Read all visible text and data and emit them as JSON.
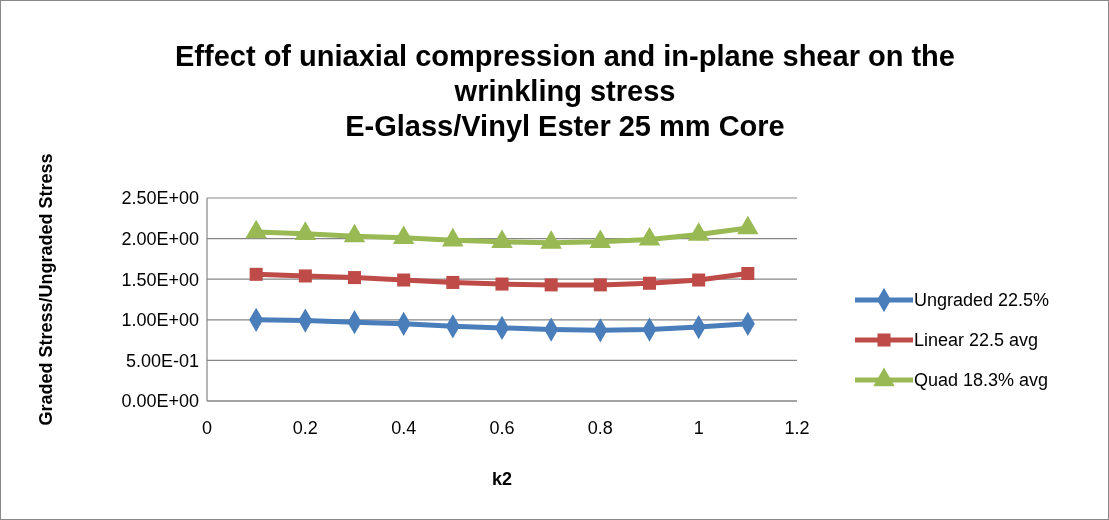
{
  "chart_data": {
    "type": "line",
    "title": "Effect of uniaxial compression and in-plane shear on the wrinkling stress\nE-Glass/Vinyl Ester 25 mm Core",
    "xlabel": "k2",
    "ylabel": "Graded Stress/Ungraded Stress",
    "x": [
      0.1,
      0.2,
      0.3,
      0.4,
      0.5,
      0.6,
      0.7,
      0.8,
      0.9,
      1.0,
      1.1
    ],
    "series": [
      {
        "name": "Ungraded 22.5%",
        "color": "#4a7ebb",
        "marker": "diamond",
        "values": [
          1.0,
          0.99,
          0.97,
          0.95,
          0.92,
          0.9,
          0.88,
          0.87,
          0.88,
          0.91,
          0.95
        ]
      },
      {
        "name": "Linear 22.5 avg",
        "color": "#be4b48",
        "marker": "square",
        "values": [
          1.56,
          1.54,
          1.52,
          1.49,
          1.46,
          1.44,
          1.43,
          1.43,
          1.45,
          1.49,
          1.57
        ]
      },
      {
        "name": "Quad 18.3% avg",
        "color": "#98b954",
        "marker": "triangle",
        "values": [
          2.08,
          2.06,
          2.03,
          2.01,
          1.98,
          1.96,
          1.95,
          1.96,
          1.99,
          2.05,
          2.13
        ]
      }
    ],
    "xlim": [
      0,
      1.2
    ],
    "xticks": [
      0,
      0.2,
      0.4,
      0.6,
      0.8,
      1,
      1.2
    ],
    "ylim": [
      0,
      2.5
    ],
    "yticks": [
      {
        "value": 0,
        "label": "0.00E+00"
      },
      {
        "value": 0.5,
        "label": "5.00E-01"
      },
      {
        "value": 1,
        "label": "1.00E+00"
      },
      {
        "value": 1.5,
        "label": "1.50E+00"
      },
      {
        "value": 2,
        "label": "2.00E+00"
      },
      {
        "value": 2.5,
        "label": "2.50E+00"
      }
    ],
    "grid": "y",
    "legend": "right"
  }
}
